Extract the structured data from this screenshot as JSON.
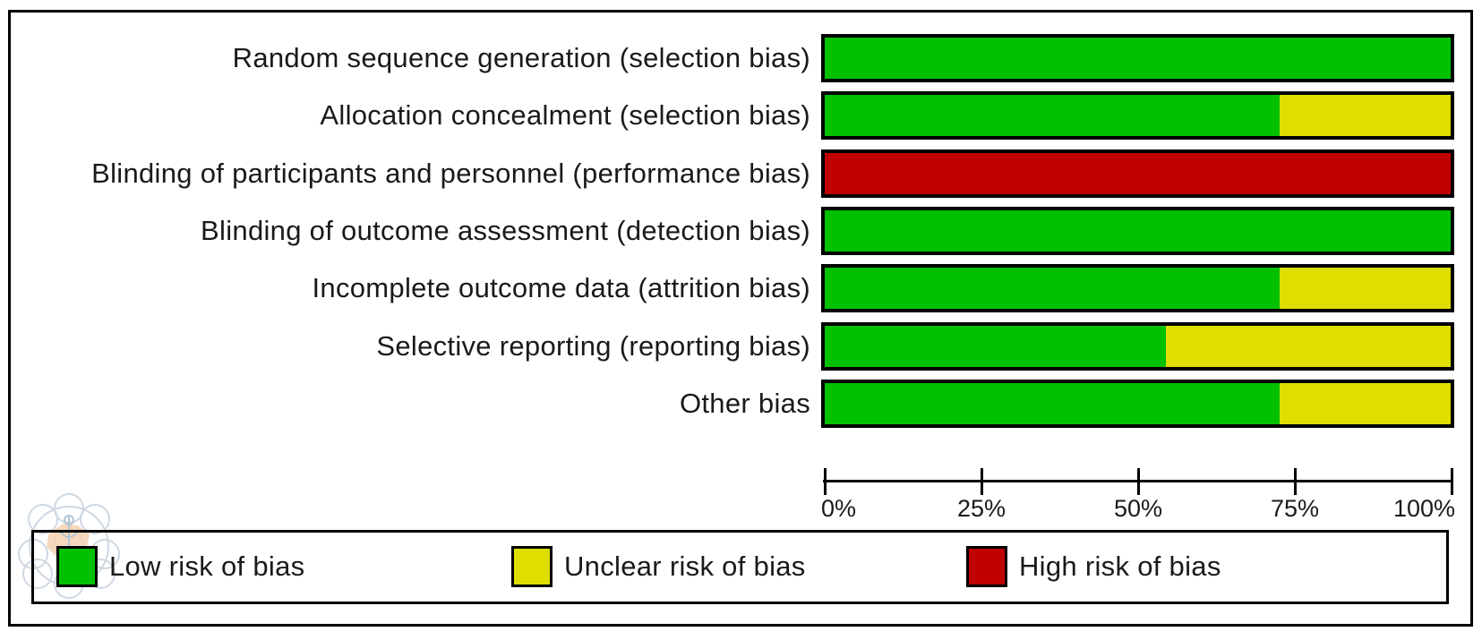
{
  "chart_data": {
    "type": "bar",
    "subtype": "stacked-horizontal",
    "title": "",
    "categories": [
      "Random sequence generation (selection bias)",
      "Allocation concealment (selection bias)",
      "Blinding of participants and personnel (performance bias)",
      "Blinding of outcome assessment (detection bias)",
      "Incomplete outcome data (attrition bias)",
      "Selective reporting (reporting bias)",
      "Other bias"
    ],
    "series": [
      {
        "name": "Low risk of bias",
        "color": "#00c000",
        "values": [
          100,
          72.7,
          0,
          100,
          72.7,
          54.5,
          72.7
        ]
      },
      {
        "name": "Unclear risk of bias",
        "color": "#dede00",
        "values": [
          0,
          27.3,
          0,
          0,
          27.3,
          45.5,
          27.3
        ]
      },
      {
        "name": "High risk of bias",
        "color": "#c00000",
        "values": [
          0,
          0,
          100,
          0,
          0,
          0,
          0
        ]
      }
    ],
    "xlabel": "",
    "ylabel": "",
    "x_range": [
      0,
      100
    ],
    "x_ticks": [
      "0%",
      "25%",
      "50%",
      "75%",
      "100%"
    ],
    "x_tick_values": [
      0,
      25,
      50,
      75,
      100
    ],
    "grid": false,
    "legend_position": "bottom"
  },
  "legend": {
    "items": [
      {
        "label": "Low risk of bias",
        "color": "#00c000"
      },
      {
        "label": "Unclear risk of bias",
        "color": "#dede00"
      },
      {
        "label": "High risk of bias",
        "color": "#c00000"
      }
    ]
  },
  "colors": {
    "low": "#00c000",
    "unclear": "#dede00",
    "high": "#c00000",
    "border": "#000000",
    "text": "#1a1a1a"
  },
  "icons": {
    "watermark": "circular-seal-watermark"
  }
}
